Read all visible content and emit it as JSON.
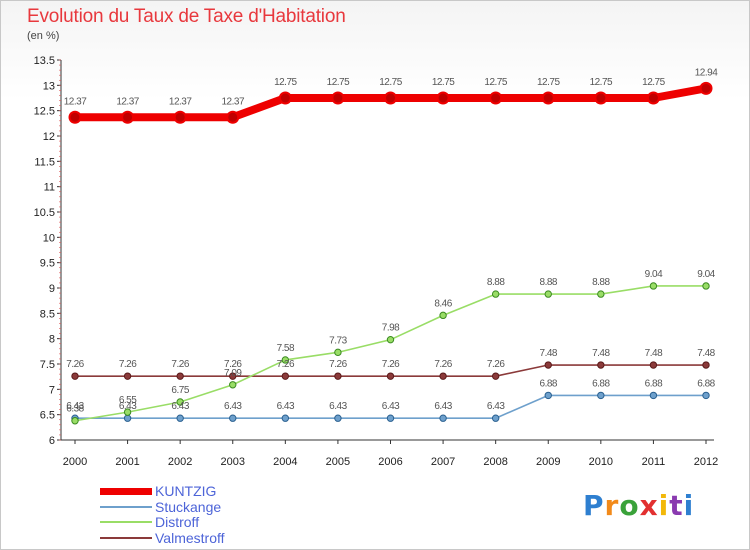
{
  "header": {
    "title": "Evolution du Taux de Taxe d'Habitation",
    "unit": "(en %)"
  },
  "brand": {
    "logo_text": "Proxiti"
  },
  "chart_data": {
    "type": "line",
    "title": "Evolution du Taux de Taxe d'Habitation",
    "ylabel": "(en %)",
    "xlabel": "",
    "ylim": [
      6,
      13.5
    ],
    "yticks": [
      "6",
      "6.5",
      "7",
      "7.5",
      "8",
      "8.5",
      "9",
      "9.5",
      "10",
      "10.5",
      "11",
      "11.5",
      "12",
      "12.5",
      "13",
      "13.5"
    ],
    "categories": [
      "2000",
      "2001",
      "2002",
      "2003",
      "2004",
      "2005",
      "2006",
      "2007",
      "2008",
      "2009",
      "2010",
      "2011",
      "2012"
    ],
    "series": [
      {
        "name": "KUNTZIG",
        "color": "#ee0000",
        "values": [
          12.37,
          12.37,
          12.37,
          12.37,
          12.75,
          12.75,
          12.75,
          12.75,
          12.75,
          12.75,
          12.75,
          12.75,
          12.94
        ],
        "labels": [
          "12.37",
          "12.37",
          "12.37",
          "12.37",
          "12.75",
          "12.75",
          "12.75",
          "12.75",
          "12.75",
          "12.75",
          "12.75",
          "12.75",
          "12.94"
        ]
      },
      {
        "name": "Stuckange",
        "color": "#6ea0cc",
        "values": [
          6.43,
          6.43,
          6.43,
          6.43,
          6.43,
          6.43,
          6.43,
          6.43,
          6.43,
          6.88,
          6.88,
          6.88,
          6.88
        ],
        "labels": [
          "6.43",
          "6.43",
          "6.43",
          "6.43",
          "6.43",
          "6.43",
          "6.43",
          "6.43",
          "6.43",
          "6.88",
          "6.88",
          "6.88",
          "6.88"
        ]
      },
      {
        "name": "Distroff",
        "color": "#99dd66",
        "values": [
          6.38,
          6.55,
          6.75,
          7.09,
          7.58,
          7.73,
          7.98,
          8.46,
          8.88,
          8.88,
          8.88,
          9.04,
          9.04
        ],
        "labels": [
          "6.38",
          "6.55",
          "6.75",
          "7.09",
          "7.58",
          "7.73",
          "7.98",
          "8.46",
          "8.88",
          "8.88",
          "8.88",
          "9.04",
          "9.04"
        ]
      },
      {
        "name": "Valmestroff",
        "color": "#8b3a3a",
        "values": [
          7.26,
          7.26,
          7.26,
          7.26,
          7.26,
          7.26,
          7.26,
          7.26,
          7.26,
          7.48,
          7.48,
          7.48,
          7.48
        ],
        "labels": [
          "7.26",
          "7.26",
          "7.26",
          "7.26",
          "7.26",
          "7.26",
          "7.26",
          "7.26",
          "7.26",
          "7.48",
          "7.48",
          "7.48",
          "7.48"
        ]
      }
    ],
    "legend_position": "bottom-left"
  }
}
